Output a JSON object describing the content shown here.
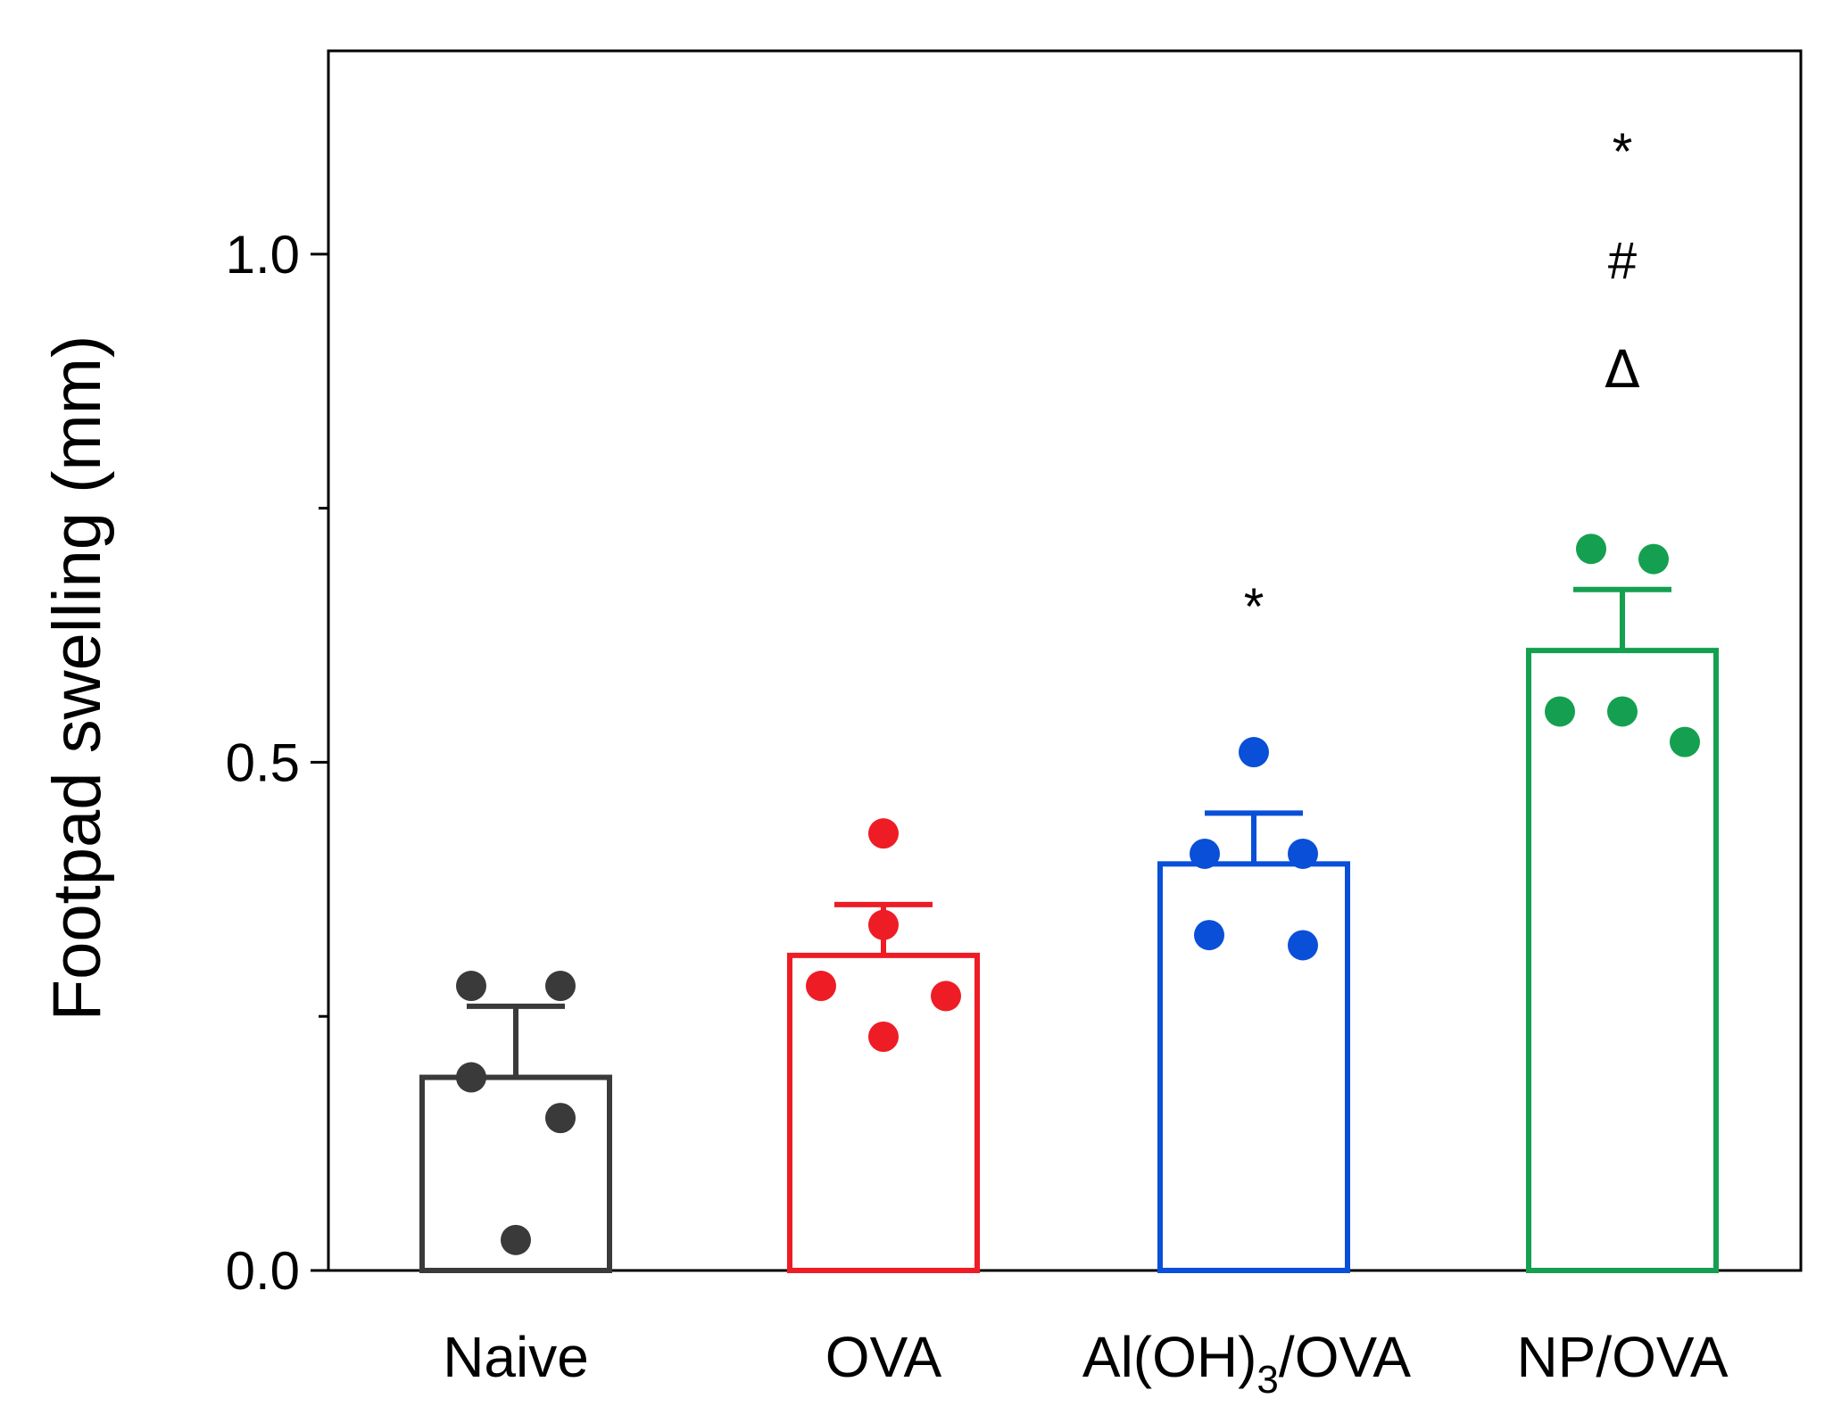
{
  "chart_data": {
    "type": "bar",
    "title": "",
    "xlabel": "",
    "ylabel": "Footpad swelling (mm)",
    "ylim": [
      0,
      1.2
    ],
    "yticks": [
      0.0,
      0.5,
      1.0
    ],
    "ytick_labels": [
      "0.0",
      "0.5",
      "1.0"
    ],
    "minor_yticks": [
      0.25,
      0.75
    ],
    "grid": false,
    "categories": [
      "Naive",
      "OVA",
      "Al(OH)3/OVA",
      "NP/OVA"
    ],
    "category_labels": [
      {
        "main": "Naive",
        "sub": "",
        "after": ""
      },
      {
        "main": "OVA",
        "sub": "",
        "after": ""
      },
      {
        "main": "Al(OH)",
        "sub": "3",
        "after": "/OVA"
      },
      {
        "main": "NP/OVA",
        "sub": "",
        "after": ""
      }
    ],
    "colors": [
      "#3a3a3a",
      "#ee1c25",
      "#0a4fd8",
      "#14a050"
    ],
    "values": [
      0.19,
      0.31,
      0.4,
      0.61
    ],
    "errors": [
      0.07,
      0.05,
      0.05,
      0.06
    ],
    "points": [
      [
        0.28,
        0.28,
        0.19,
        0.15,
        0.03
      ],
      [
        0.43,
        0.34,
        0.28,
        0.27,
        0.23
      ],
      [
        0.51,
        0.41,
        0.41,
        0.33,
        0.32
      ],
      [
        0.71,
        0.7,
        0.55,
        0.55,
        0.52
      ]
    ],
    "annotations": [
      {
        "category": "Al(OH)3/OVA",
        "marks": [
          "*"
        ]
      },
      {
        "category": "NP/OVA",
        "marks": [
          "*",
          "#",
          "Δ"
        ]
      }
    ]
  }
}
